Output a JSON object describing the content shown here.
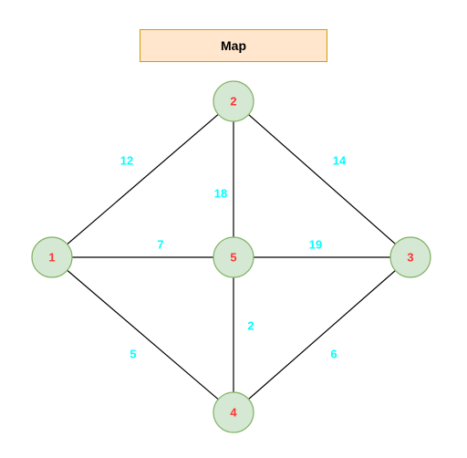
{
  "title": "Map",
  "colors": {
    "title_fill": "#ffe6cc",
    "title_stroke": "#d79b00",
    "node_fill": "#d5e8d4",
    "node_stroke": "#82b366",
    "node_label": "#ff3333",
    "weight_label": "#00ffff",
    "edge": "#000000"
  },
  "nodes": [
    {
      "id": "1",
      "label": "1"
    },
    {
      "id": "2",
      "label": "2"
    },
    {
      "id": "3",
      "label": "3"
    },
    {
      "id": "4",
      "label": "4"
    },
    {
      "id": "5",
      "label": "5"
    }
  ],
  "edges": [
    {
      "from": "1",
      "to": "2",
      "weight": "12"
    },
    {
      "from": "2",
      "to": "3",
      "weight": "14"
    },
    {
      "from": "2",
      "to": "5",
      "weight": "18"
    },
    {
      "from": "1",
      "to": "5",
      "weight": "7"
    },
    {
      "from": "5",
      "to": "3",
      "weight": "19"
    },
    {
      "from": "5",
      "to": "4",
      "weight": "2"
    },
    {
      "from": "1",
      "to": "4",
      "weight": "5"
    },
    {
      "from": "3",
      "to": "4",
      "weight": "6"
    }
  ]
}
